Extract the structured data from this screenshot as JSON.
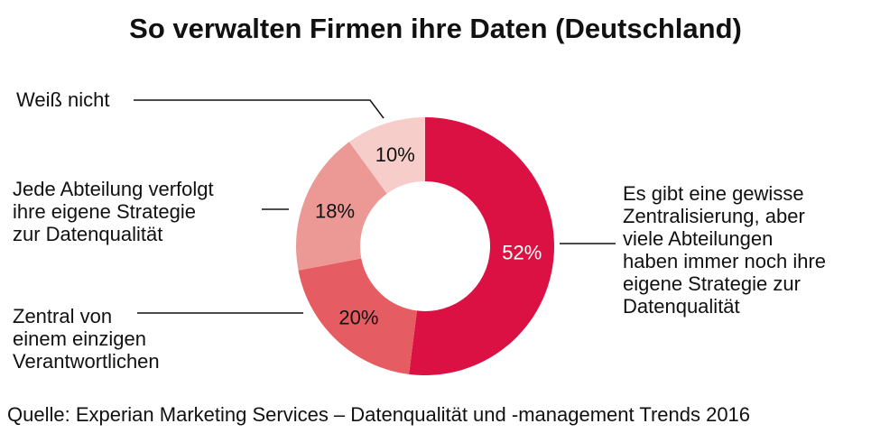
{
  "chart_data": {
    "type": "pie",
    "donut": true,
    "title": "So verwalten Firmen ihre Daten (Deutschland)",
    "source": "Quelle: Experian Marketing Services – Datenqualität und -management Trends 2016",
    "slices": [
      {
        "label": "Es gibt eine gewisse Zentralisierung, aber viele Abteilungen haben immer noch ihre eigene Strategie zur Datenqualität",
        "value": 52,
        "value_label": "52%",
        "color": "#DC1143"
      },
      {
        "label": "Zentral von einem einzigen Verantwortlichen",
        "value": 20,
        "value_label": "20%",
        "color": "#E55C62"
      },
      {
        "label": "Jede Abteilung verfolgt ihre eigene Strategie zur Datenqualität",
        "value": 18,
        "value_label": "18%",
        "color": "#EC9894"
      },
      {
        "label": "Weiß nicht",
        "value": 10,
        "value_label": "10%",
        "color": "#F6CDC9"
      }
    ]
  }
}
